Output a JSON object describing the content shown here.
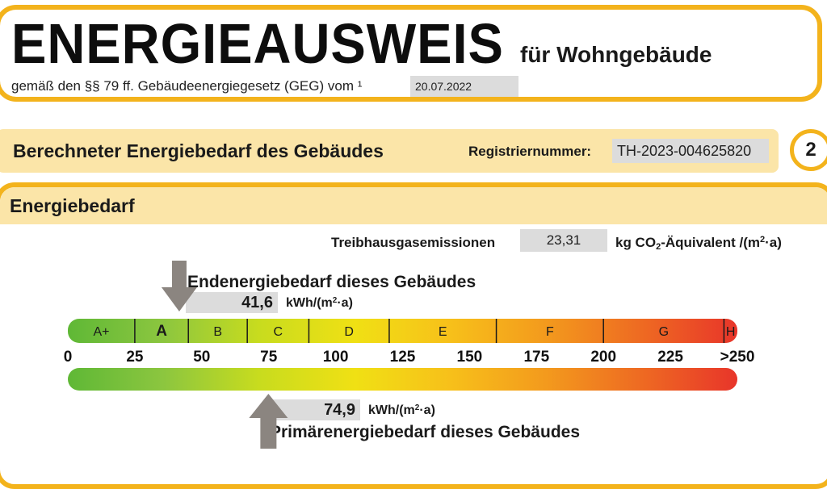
{
  "header": {
    "title": "ENERGIEAUSWEIS",
    "subtitle": "für Wohngebäude",
    "law_text": "gemäß den §§ 79 ff. Gebäudeenergiegesetz (GEG) vom ¹",
    "date": "20.07.2022"
  },
  "section": {
    "title": "Berechneter Energiebedarf des Gebäudes",
    "registration_label": "Registriernummer:",
    "registration_number": "TH-2023-004625820",
    "page_number": "2"
  },
  "energy": {
    "panel_title": "Energiebedarf",
    "ghg_label": "Treibhausgasemissionen",
    "ghg_value": "23,31",
    "ghg_unit_prefix": "kg CO",
    "ghg_unit_sub": "2",
    "ghg_unit_mid": "-Äquivalent /(m",
    "ghg_unit_sup": "2",
    "ghg_unit_suffix": "·a)",
    "end_label": "Endenergiebedarf dieses Gebäudes",
    "end_value": "41,6",
    "end_value_num": 41.6,
    "end_unit_a": "kWh/(m",
    "end_unit_sup": "2",
    "end_unit_b": "·a)",
    "primary_label": "Primärenergiebedarf dieses Gebäudes",
    "primary_value": "74,9",
    "primary_value_num": 74.9,
    "primary_unit_a": "kWh/(m",
    "primary_unit_sup": "2",
    "primary_unit_b": "·a)"
  },
  "scale": {
    "classes": [
      {
        "label": "A+",
        "from": 0,
        "to": 25,
        "bold": false
      },
      {
        "label": "A",
        "from": 25,
        "to": 45,
        "bold": true
      },
      {
        "label": "B",
        "from": 45,
        "to": 67,
        "bold": false
      },
      {
        "label": "C",
        "from": 67,
        "to": 90,
        "bold": false
      },
      {
        "label": "D",
        "from": 90,
        "to": 120,
        "bold": false
      },
      {
        "label": "E",
        "from": 120,
        "to": 160,
        "bold": false
      },
      {
        "label": "F",
        "from": 160,
        "to": 200,
        "bold": false
      },
      {
        "label": "G",
        "from": 200,
        "to": 245,
        "bold": false
      },
      {
        "label": "H",
        "from": 245,
        "to": 250,
        "bold": false
      }
    ],
    "ticks": [
      0,
      25,
      50,
      75,
      100,
      125,
      150,
      175,
      200,
      225,
      250
    ],
    "tick_labels": [
      "0",
      "25",
      "50",
      "75",
      "100",
      "125",
      "150",
      "175",
      "200",
      "225",
      ">250"
    ],
    "max": 250,
    "colors": [
      "#5fb836",
      "#8cc63f",
      "#c8dc1e",
      "#f0e014",
      "#f7c01a",
      "#f39a1d",
      "#ee6a22",
      "#e8352a"
    ],
    "arrow_color": "#8b8580"
  }
}
